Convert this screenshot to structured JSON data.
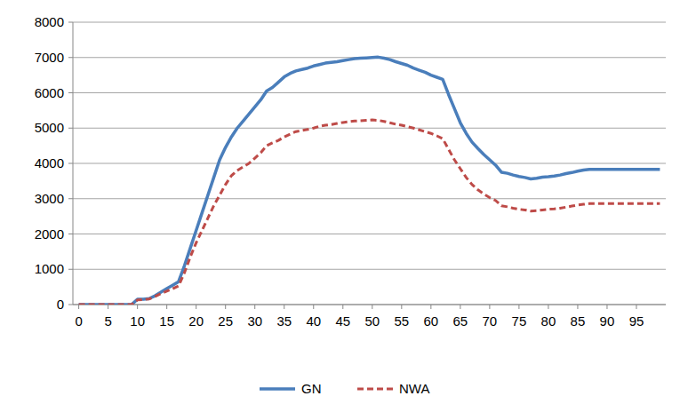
{
  "chart_data": {
    "type": "line",
    "x": [
      0,
      1,
      2,
      3,
      4,
      5,
      6,
      7,
      8,
      9,
      10,
      11,
      12,
      13,
      14,
      15,
      16,
      17,
      18,
      19,
      20,
      21,
      22,
      23,
      24,
      25,
      26,
      27,
      28,
      29,
      30,
      31,
      32,
      33,
      34,
      35,
      36,
      37,
      38,
      39,
      40,
      41,
      42,
      43,
      44,
      45,
      46,
      47,
      48,
      49,
      50,
      51,
      52,
      53,
      54,
      55,
      56,
      57,
      58,
      59,
      60,
      61,
      62,
      63,
      64,
      65,
      66,
      67,
      68,
      69,
      70,
      71,
      72,
      73,
      74,
      75,
      76,
      77,
      78,
      79,
      80,
      81,
      82,
      83,
      84,
      85,
      86,
      87,
      88,
      89,
      90,
      91,
      92,
      93,
      94,
      95,
      96,
      97,
      98,
      99
    ],
    "series": [
      {
        "name": "GN",
        "color": "#4a7ebb",
        "line_style": "solid",
        "values": [
          0,
          0,
          0,
          0,
          0,
          0,
          0,
          0,
          0,
          0,
          150,
          150,
          170,
          250,
          350,
          450,
          550,
          650,
          1100,
          1600,
          2100,
          2600,
          3100,
          3600,
          4100,
          4450,
          4750,
          5000,
          5200,
          5400,
          5600,
          5800,
          6050,
          6150,
          6300,
          6450,
          6550,
          6620,
          6660,
          6700,
          6760,
          6800,
          6840,
          6860,
          6880,
          6910,
          6940,
          6970,
          6980,
          6990,
          7000,
          7010,
          6980,
          6940,
          6880,
          6830,
          6780,
          6700,
          6640,
          6580,
          6500,
          6440,
          6380,
          5950,
          5550,
          5150,
          4850,
          4600,
          4420,
          4250,
          4100,
          3950,
          3750,
          3720,
          3670,
          3630,
          3600,
          3560,
          3580,
          3610,
          3620,
          3640,
          3670,
          3710,
          3740,
          3780,
          3810,
          3830,
          3830,
          3830,
          3830,
          3830,
          3830,
          3830,
          3830,
          3830,
          3830,
          3830,
          3830,
          3830
        ]
      },
      {
        "name": "NWA",
        "color": "#be4b48",
        "line_style": "dashed",
        "values": [
          0,
          0,
          0,
          0,
          0,
          0,
          0,
          0,
          0,
          0,
          130,
          140,
          160,
          230,
          310,
          380,
          450,
          530,
          900,
          1350,
          1750,
          2100,
          2450,
          2800,
          3100,
          3400,
          3650,
          3800,
          3900,
          4000,
          4150,
          4300,
          4500,
          4580,
          4650,
          4750,
          4830,
          4900,
          4930,
          4960,
          5000,
          5050,
          5080,
          5100,
          5130,
          5160,
          5180,
          5200,
          5210,
          5220,
          5230,
          5220,
          5190,
          5150,
          5110,
          5080,
          5040,
          5000,
          4950,
          4900,
          4850,
          4780,
          4700,
          4400,
          4100,
          3850,
          3600,
          3400,
          3250,
          3130,
          3030,
          2950,
          2800,
          2770,
          2730,
          2700,
          2680,
          2650,
          2660,
          2680,
          2700,
          2710,
          2730,
          2760,
          2790,
          2820,
          2840,
          2860,
          2860,
          2860,
          2860,
          2860,
          2860,
          2860,
          2860,
          2860,
          2860,
          2860,
          2860,
          2860
        ]
      }
    ],
    "xlim": [
      -1,
      100
    ],
    "xticks": [
      0,
      5,
      10,
      15,
      20,
      25,
      30,
      35,
      40,
      45,
      50,
      55,
      60,
      65,
      70,
      75,
      80,
      85,
      90,
      95
    ],
    "ylim": [
      0,
      8000
    ],
    "yticks": [
      0,
      1000,
      2000,
      3000,
      4000,
      5000,
      6000,
      7000,
      8000
    ],
    "grid": true,
    "legend": "bottom"
  }
}
